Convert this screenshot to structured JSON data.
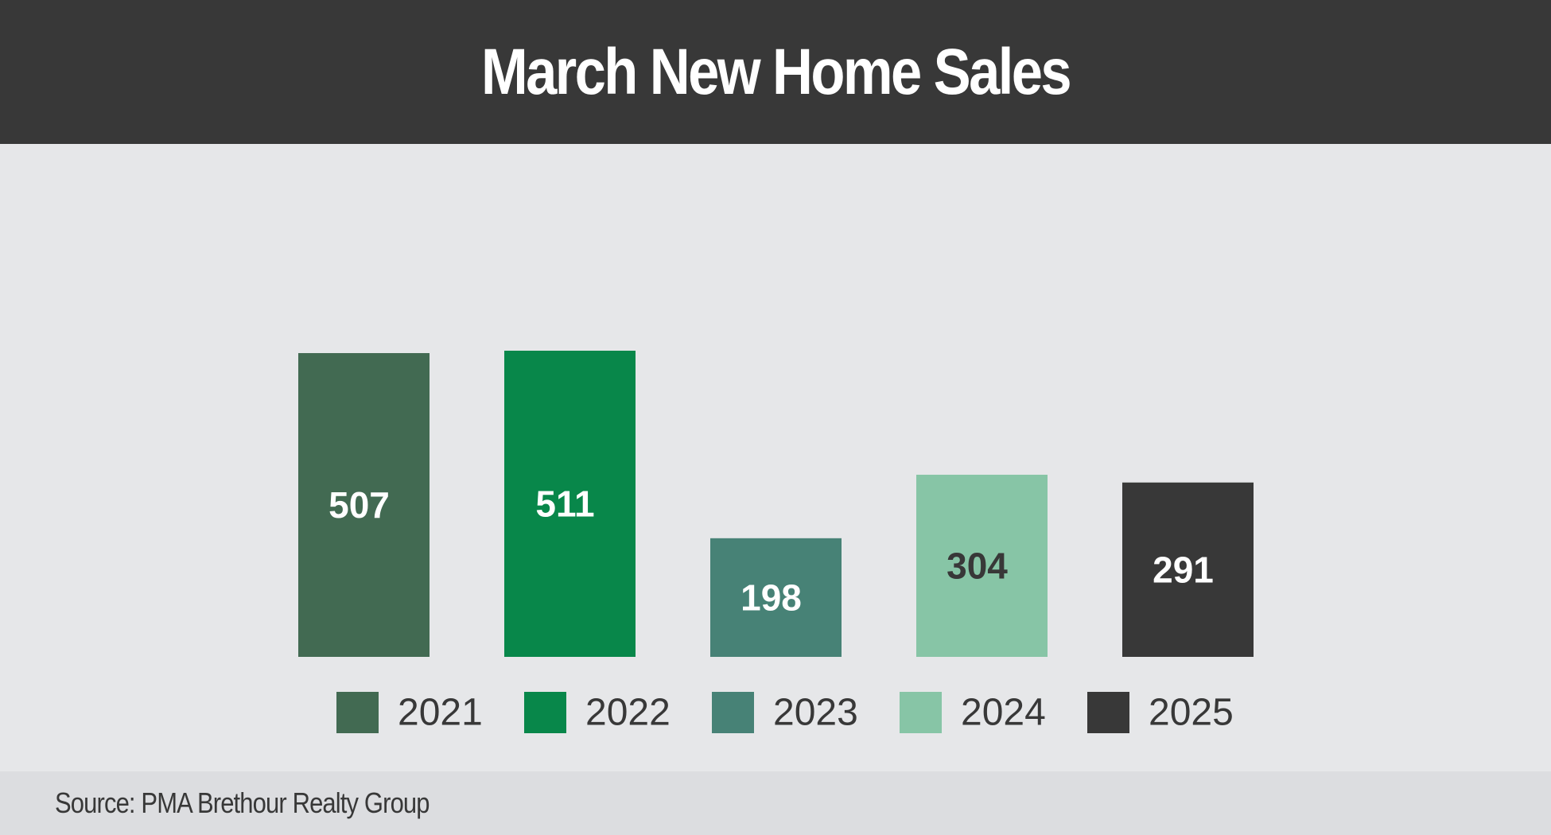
{
  "chart_data": {
    "type": "bar",
    "title": "March New Home Sales",
    "categories": [
      "2021",
      "2022",
      "2023",
      "2024",
      "2025"
    ],
    "values": [
      507,
      511,
      198,
      304,
      291
    ],
    "colors": [
      "#426a52",
      "#08874a",
      "#478276",
      "#87c5a6",
      "#383838"
    ],
    "value_label_colors": [
      "#ffffff",
      "#ffffff",
      "#ffffff",
      "#383838",
      "#ffffff"
    ],
    "ylim": [
      0,
      511
    ],
    "legend": "bottom",
    "grid": false,
    "xlabel": "",
    "ylabel": ""
  },
  "source": "Source: PMA Brethour Realty Group",
  "colors": {
    "header_background": "#383838",
    "page_background": "#e6e7e9",
    "footer_background": "#dcdde0"
  }
}
